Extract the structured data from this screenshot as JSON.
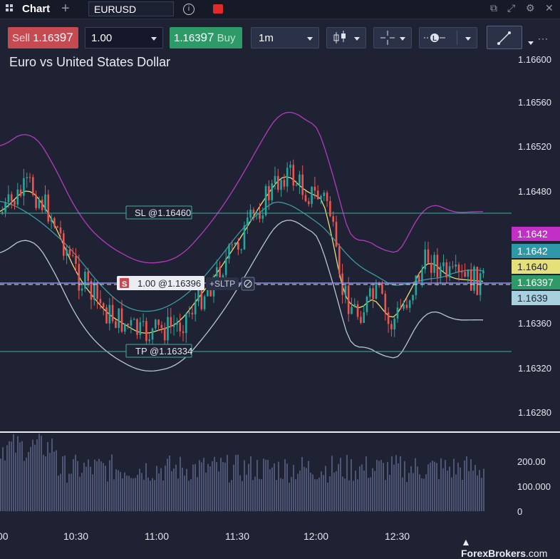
{
  "topbar": {
    "title": "Chart",
    "symbol": "EURUSD",
    "info_icon": "info-icon",
    "window_icons": [
      "pop-out-icon",
      "expand-icon",
      "cog-icon",
      "close-icon"
    ]
  },
  "toolbar": {
    "sell_label": "Sell",
    "sell_price_main": "1.163",
    "sell_price_big": "97",
    "quantity": "1.00",
    "buy_price_main": "1.163",
    "buy_price_big": "97",
    "buy_label": "Buy",
    "timeframe": "1m"
  },
  "chart": {
    "title": "Euro vs United States Dollar",
    "sl_label": "SL @1.16460",
    "tp_label": "TP @1.16334",
    "position_side": "S",
    "position_label": "1.00 @1.16396",
    "sltp_label": "+SLTP",
    "price_ticks": [
      "1.16600",
      "1.16560",
      "1.16520",
      "1.16480",
      "1.16360",
      "1.16320",
      "1.16280"
    ],
    "price_badges": [
      {
        "text": "1.1642",
        "color": "#c22fc7"
      },
      {
        "text": "1.1642",
        "color": "#2f98a8"
      },
      {
        "text": "1.1640",
        "color": "#e5e07a"
      },
      {
        "text": "1.16397",
        "color": "#2e9a67"
      },
      {
        "text": "1.1639",
        "color": "#a7d1df"
      }
    ],
    "volume_ticks": [
      "200.00",
      "100.000",
      "0"
    ],
    "time_ticks": [
      "00",
      "10:30",
      "11:00",
      "11:30",
      "12:00",
      "12:30"
    ],
    "colors": {
      "up": "#26a69a",
      "down": "#ef5350",
      "upper_band": "#b43bbf",
      "lower_band": "#b9c7d3",
      "ma_yellow": "#e5e07a",
      "ma_teal": "#3c9aa5",
      "sl_tp_line": "#3fae9f",
      "position_line": "#8a8ff0"
    }
  },
  "watermark": {
    "brand": "ForexBrokers",
    "suffix": ".com"
  }
}
